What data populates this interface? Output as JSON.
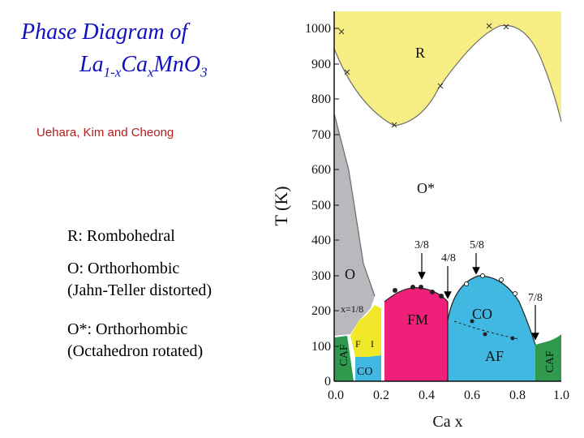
{
  "title": {
    "line1": "Phase Diagram of",
    "line2_parts": [
      "La",
      "1-x",
      "Ca",
      "x",
      "MnO",
      "3"
    ]
  },
  "authors": "Uehara, Kim and Cheong",
  "legend": [
    "R: Rombohedral",
    "O: Orthorhombic",
    "(Jahn-Teller distorted)",
    "O*: Orthorhombic",
    "(Octahedron rotated)"
  ],
  "chart_data": {
    "type": "phase-diagram",
    "xlabel": "Ca x",
    "ylabel": "T (K)",
    "xlim": [
      0.0,
      1.0
    ],
    "ylim": [
      0,
      1050
    ],
    "x_ticks": [
      "0.0",
      "0.2",
      "0.4",
      "0.6",
      "0.8",
      "1.0"
    ],
    "y_ticks": [
      "0",
      "100",
      "200",
      "300",
      "400",
      "500",
      "600",
      "700",
      "800",
      "900",
      "1000"
    ],
    "phase_labels": [
      "R",
      "O*",
      "O",
      "x=1/8",
      "F",
      "I",
      "CO",
      "FM",
      "CO",
      "AF",
      "CAF",
      "CAF"
    ],
    "arrow_labels": [
      "3/8",
      "4/8",
      "5/8",
      "7/8"
    ],
    "colors": {
      "R": "#f7ef86",
      "O": "#b9b9bd",
      "FM": "#f0207a",
      "CO": "#40b8e2",
      "CAF": "#2f9a4e",
      "F": "#f2e82a",
      "border": "#8a8a8a"
    }
  }
}
